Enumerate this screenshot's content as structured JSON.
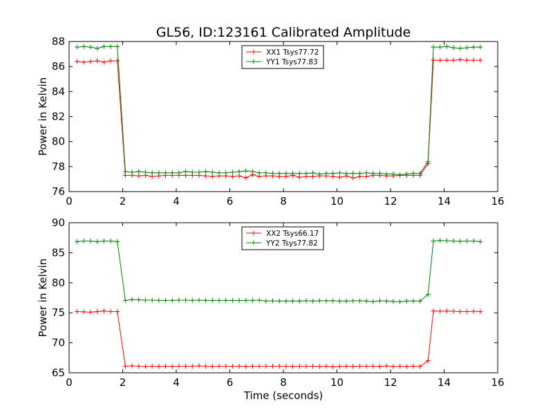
{
  "figure": {
    "title": "GL56, ID:123161 Calibrated Amplitude"
  },
  "chart_data": [
    {
      "type": "line",
      "title": "GL56, ID:123161 Calibrated Amplitude",
      "xlabel": "",
      "ylabel": "Power in Kelvin",
      "xlim": [
        0,
        16
      ],
      "ylim": [
        76,
        88
      ],
      "xticks": [
        "0",
        "2",
        "4",
        "6",
        "8",
        "10",
        "12",
        "14",
        "16"
      ],
      "yticks": [
        "76",
        "78",
        "80",
        "82",
        "84",
        "86",
        "88"
      ],
      "grid": false,
      "legend_position": "top-center",
      "x": [
        0.3,
        0.55,
        0.8,
        1.05,
        1.3,
        1.55,
        1.8,
        2.1,
        2.35,
        2.6,
        2.85,
        3.1,
        3.35,
        3.6,
        3.85,
        4.1,
        4.35,
        4.6,
        4.85,
        5.1,
        5.35,
        5.6,
        5.85,
        6.1,
        6.35,
        6.6,
        6.85,
        7.1,
        7.35,
        7.6,
        7.85,
        8.1,
        8.35,
        8.6,
        8.85,
        9.1,
        9.35,
        9.6,
        9.85,
        10.1,
        10.35,
        10.6,
        10.85,
        11.1,
        11.35,
        11.6,
        11.85,
        12.1,
        12.35,
        12.6,
        12.85,
        13.1,
        13.4,
        13.6,
        13.85,
        14.1,
        14.35,
        14.6,
        14.85,
        15.1,
        15.35
      ],
      "series": [
        {
          "name": "XX1 Tsys77.72",
          "color": "#ff0000",
          "values": [
            86.4,
            86.35,
            86.4,
            86.45,
            86.35,
            86.45,
            86.45,
            77.3,
            77.3,
            77.25,
            77.3,
            77.2,
            77.25,
            77.3,
            77.3,
            77.3,
            77.3,
            77.3,
            77.3,
            77.25,
            77.2,
            77.25,
            77.25,
            77.2,
            77.25,
            77.1,
            77.35,
            77.2,
            77.25,
            77.25,
            77.2,
            77.2,
            77.3,
            77.15,
            77.2,
            77.2,
            77.25,
            77.25,
            77.2,
            77.15,
            77.25,
            77.1,
            77.2,
            77.2,
            77.3,
            77.3,
            77.25,
            77.25,
            77.3,
            77.3,
            77.3,
            77.3,
            78.25,
            86.5,
            86.5,
            86.5,
            86.5,
            86.55,
            86.5,
            86.5,
            86.5
          ]
        },
        {
          "name": "YY1 Tsys77.83",
          "color": "#008000",
          "values": [
            87.55,
            87.6,
            87.55,
            87.45,
            87.6,
            87.6,
            87.6,
            77.6,
            77.55,
            77.6,
            77.55,
            77.5,
            77.5,
            77.5,
            77.5,
            77.5,
            77.6,
            77.55,
            77.55,
            77.6,
            77.55,
            77.5,
            77.5,
            77.55,
            77.6,
            77.65,
            77.6,
            77.5,
            77.5,
            77.45,
            77.45,
            77.45,
            77.45,
            77.45,
            77.45,
            77.5,
            77.4,
            77.45,
            77.45,
            77.5,
            77.45,
            77.45,
            77.45,
            77.5,
            77.45,
            77.45,
            77.4,
            77.4,
            77.35,
            77.4,
            77.45,
            77.45,
            78.4,
            87.55,
            87.55,
            87.6,
            87.5,
            87.45,
            87.5,
            87.55,
            87.55
          ]
        }
      ]
    },
    {
      "type": "line",
      "title": "",
      "xlabel": "Time (seconds)",
      "ylabel": "Power in Kelvin",
      "xlim": [
        0,
        16
      ],
      "ylim": [
        65,
        90
      ],
      "xticks": [
        "0",
        "2",
        "4",
        "6",
        "8",
        "10",
        "12",
        "14",
        "16"
      ],
      "yticks": [
        "65",
        "70",
        "75",
        "80",
        "85",
        "90"
      ],
      "grid": false,
      "legend_position": "top-center",
      "x": [
        0.3,
        0.55,
        0.8,
        1.05,
        1.3,
        1.55,
        1.8,
        2.1,
        2.35,
        2.6,
        2.85,
        3.1,
        3.35,
        3.6,
        3.85,
        4.1,
        4.35,
        4.6,
        4.85,
        5.1,
        5.35,
        5.6,
        5.85,
        6.1,
        6.35,
        6.6,
        6.85,
        7.1,
        7.35,
        7.6,
        7.85,
        8.1,
        8.35,
        8.6,
        8.85,
        9.1,
        9.35,
        9.6,
        9.85,
        10.1,
        10.35,
        10.6,
        10.85,
        11.1,
        11.35,
        11.6,
        11.85,
        12.1,
        12.35,
        12.6,
        12.85,
        13.1,
        13.4,
        13.6,
        13.85,
        14.1,
        14.35,
        14.6,
        14.85,
        15.1,
        15.35
      ],
      "series": [
        {
          "name": "XX2 Tsys66.17",
          "color": "#ff0000",
          "values": [
            75.2,
            75.15,
            75.1,
            75.2,
            75.3,
            75.2,
            75.2,
            66.1,
            66.15,
            66.1,
            66.05,
            66.1,
            66.05,
            66.1,
            66.05,
            66.1,
            66.1,
            66.1,
            66.15,
            66.1,
            66.05,
            66.1,
            66.1,
            66.1,
            66.1,
            66.05,
            66.1,
            66.1,
            66.1,
            66.1,
            66.1,
            66.1,
            66.05,
            66.1,
            66.1,
            66.1,
            66.05,
            66.1,
            66.0,
            66.05,
            66.1,
            66.05,
            66.1,
            66.1,
            66.1,
            66.05,
            66.15,
            66.05,
            66.1,
            66.05,
            66.1,
            66.05,
            67.0,
            75.3,
            75.25,
            75.3,
            75.25,
            75.2,
            75.2,
            75.25,
            75.2
          ]
        },
        {
          "name": "YY2 Tsys77.82",
          "color": "#008000",
          "values": [
            86.85,
            86.95,
            86.95,
            86.85,
            86.95,
            86.95,
            86.85,
            77.05,
            77.2,
            77.15,
            77.1,
            77.1,
            77.05,
            77.05,
            77.05,
            77.1,
            77.1,
            77.05,
            77.1,
            77.05,
            77.05,
            77.05,
            77.05,
            77.05,
            77.05,
            77.05,
            77.05,
            77.1,
            76.95,
            77.0,
            76.95,
            76.95,
            76.95,
            76.95,
            77.0,
            76.95,
            77.0,
            77.0,
            77.0,
            76.95,
            76.95,
            77.0,
            77.0,
            76.95,
            76.85,
            77.0,
            76.95,
            76.9,
            76.85,
            76.95,
            76.95,
            76.95,
            78.05,
            86.95,
            87.05,
            87.0,
            86.95,
            86.9,
            86.95,
            86.95,
            86.85
          ]
        }
      ]
    }
  ]
}
